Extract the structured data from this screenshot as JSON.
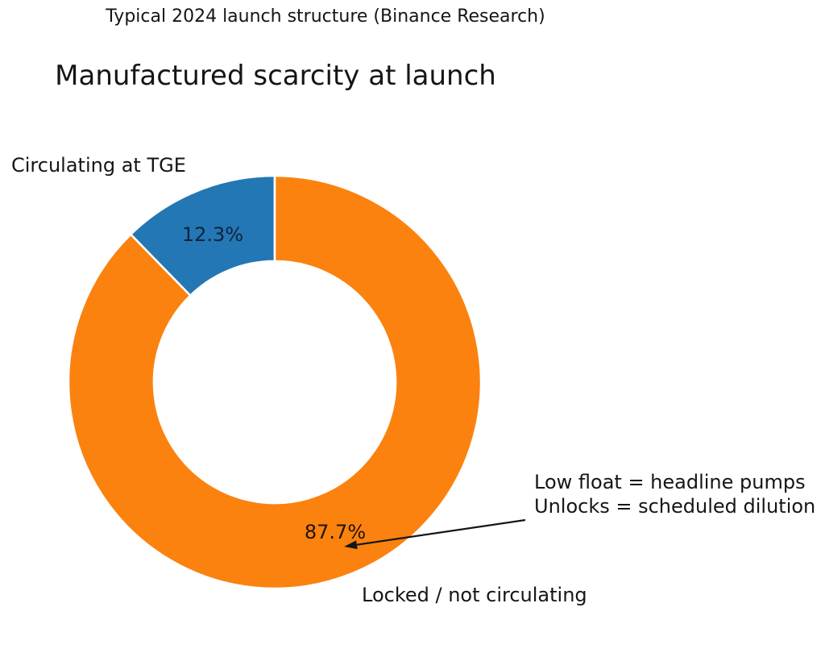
{
  "page": {
    "background": "#ffffff",
    "text_color": "#151515"
  },
  "chart_data": {
    "type": "pie",
    "subtype": "donut",
    "suptitle": "Typical 2024 launch structure (Binance Research)",
    "title": "Manufactured scarcity at launch",
    "categories": [
      "Circulating at TGE",
      "Locked / not circulating"
    ],
    "values": [
      12.3,
      87.7
    ],
    "value_labels": [
      "12.3%",
      "87.7%"
    ],
    "colors": [
      "#2377b4",
      "#fb820f"
    ],
    "edge_color": "#ffffff",
    "start_angle_deg": 90,
    "counterclockwise": true,
    "hole_ratio": 0.586,
    "legend_position": "none",
    "grid": false,
    "annotation": {
      "text_lines": [
        "Low float = headline pumps",
        "Unlocks = scheduled dilution"
      ],
      "arrow_points_to": "87.7%"
    }
  }
}
